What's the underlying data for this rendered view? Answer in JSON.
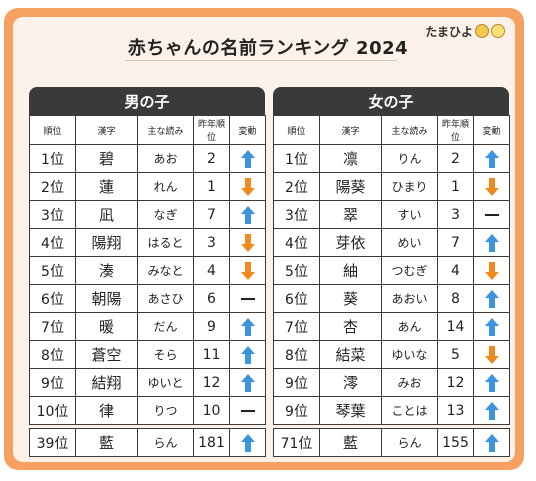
{
  "title": "赤ちゃんの名前ランキング 2024",
  "logo": {
    "text": "たまひよ"
  },
  "columns": [
    "順位",
    "漢字",
    "主な読み",
    "昨年順位",
    "変動"
  ],
  "colors": {
    "frame": "#f6a161",
    "header": "#3a3a3a",
    "up": "#3d94de",
    "down": "#f08a1c"
  },
  "boys": {
    "header": "男の子",
    "rows": [
      {
        "rank": "1位",
        "kanji": "碧",
        "reading": "あお",
        "last": "2",
        "change": "up"
      },
      {
        "rank": "2位",
        "kanji": "蓮",
        "reading": "れん",
        "last": "1",
        "change": "down"
      },
      {
        "rank": "3位",
        "kanji": "凪",
        "reading": "なぎ",
        "last": "7",
        "change": "up"
      },
      {
        "rank": "4位",
        "kanji": "陽翔",
        "reading": "はると",
        "last": "3",
        "change": "down"
      },
      {
        "rank": "5位",
        "kanji": "湊",
        "reading": "みなと",
        "last": "4",
        "change": "down"
      },
      {
        "rank": "6位",
        "kanji": "朝陽",
        "reading": "あさひ",
        "last": "6",
        "change": "same"
      },
      {
        "rank": "7位",
        "kanji": "暖",
        "reading": "だん",
        "last": "9",
        "change": "up"
      },
      {
        "rank": "8位",
        "kanji": "蒼空",
        "reading": "そら",
        "last": "11",
        "change": "up"
      },
      {
        "rank": "9位",
        "kanji": "結翔",
        "reading": "ゆいと",
        "last": "12",
        "change": "up"
      },
      {
        "rank": "10位",
        "kanji": "律",
        "reading": "りつ",
        "last": "10",
        "change": "same"
      }
    ],
    "featured": {
      "rank": "39位",
      "kanji": "藍",
      "reading": "らん",
      "last": "181",
      "change": "up"
    }
  },
  "girls": {
    "header": "女の子",
    "rows": [
      {
        "rank": "1位",
        "kanji": "凛",
        "reading": "りん",
        "last": "2",
        "change": "up"
      },
      {
        "rank": "2位",
        "kanji": "陽葵",
        "reading": "ひまり",
        "last": "1",
        "change": "down"
      },
      {
        "rank": "3位",
        "kanji": "翠",
        "reading": "すい",
        "last": "3",
        "change": "same"
      },
      {
        "rank": "4位",
        "kanji": "芽依",
        "reading": "めい",
        "last": "7",
        "change": "up"
      },
      {
        "rank": "5位",
        "kanji": "紬",
        "reading": "つむぎ",
        "last": "4",
        "change": "down"
      },
      {
        "rank": "6位",
        "kanji": "葵",
        "reading": "あおい",
        "last": "8",
        "change": "up"
      },
      {
        "rank": "7位",
        "kanji": "杏",
        "reading": "あん",
        "last": "14",
        "change": "up"
      },
      {
        "rank": "8位",
        "kanji": "結菜",
        "reading": "ゆいな",
        "last": "5",
        "change": "down"
      },
      {
        "rank": "9位",
        "kanji": "澪",
        "reading": "みお",
        "last": "12",
        "change": "up"
      },
      {
        "rank": "9位",
        "kanji": "琴葉",
        "reading": "ことは",
        "last": "13",
        "change": "up"
      }
    ],
    "featured": {
      "rank": "71位",
      "kanji": "藍",
      "reading": "らん",
      "last": "155",
      "change": "up"
    }
  }
}
